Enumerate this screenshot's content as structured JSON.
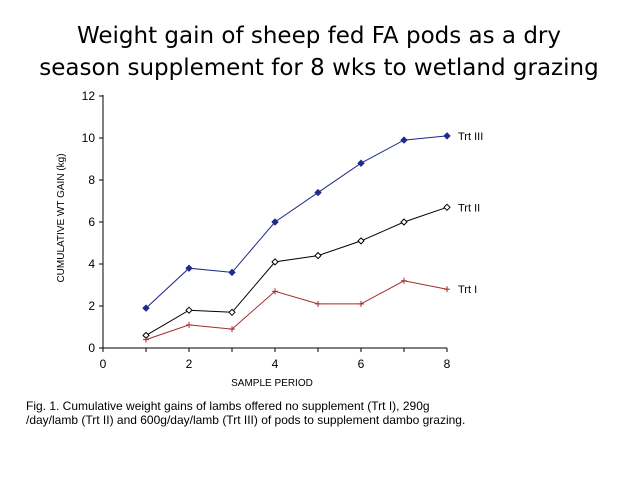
{
  "slide": {
    "title_line1": "Weight gain of sheep fed FA pods as a dry",
    "title_line2": "season supplement for 8 wks to wetland grazing"
  },
  "caption": {
    "line1": "Fig. 1.  Cumulative weight gains of lambs offered no supplement (Trt I), 290g",
    "line2": "/day/lamb (Trt II) and 600g/day/lamb (Trt III) of pods to supplement dambo grazing."
  },
  "chart_data": {
    "type": "line",
    "title": "",
    "xlabel": "SAMPLE PERIOD",
    "ylabel": "CUMULATIVE WT GAIN (kg)",
    "xlim": [
      0,
      8
    ],
    "ylim": [
      0,
      12
    ],
    "xticks": [
      "0",
      "2",
      "4",
      "6",
      "8"
    ],
    "yticks": [
      "0",
      "2",
      "4",
      "6",
      "8",
      "10",
      "12"
    ],
    "x": [
      1,
      2,
      3,
      4,
      5,
      6,
      7,
      8
    ],
    "grid": false,
    "legend": "series labels at line ends (right)",
    "series": [
      {
        "name": "Trt III",
        "values": [
          1.9,
          3.8,
          3.6,
          6.0,
          7.4,
          8.8,
          9.9,
          10.1
        ],
        "color": "#1f2a8c",
        "marker": "filled-diamond"
      },
      {
        "name": "Trt II",
        "values": [
          0.6,
          1.8,
          1.7,
          4.1,
          4.4,
          5.1,
          6.0,
          6.7
        ],
        "color": "#000000",
        "marker": "open-diamond"
      },
      {
        "name": "Trt I",
        "values": [
          0.4,
          1.1,
          0.9,
          2.7,
          2.1,
          2.1,
          3.2,
          2.8
        ],
        "color": "#a52a2a",
        "marker": "plus"
      }
    ]
  }
}
